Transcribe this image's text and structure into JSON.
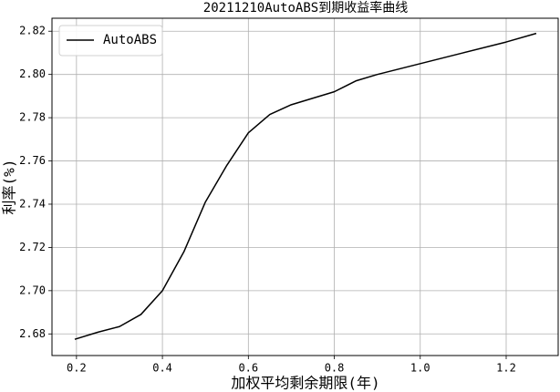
{
  "chart_data": {
    "type": "line",
    "title": "20211210AutoABS到期收益率曲线",
    "x_label": "加权平均剩余期限(年)",
    "y_label": "利率(%)",
    "x": [
      0.196,
      0.25,
      0.3,
      0.35,
      0.4,
      0.45,
      0.5,
      0.55,
      0.6,
      0.65,
      0.7,
      0.75,
      0.8,
      0.85,
      0.9,
      1.0,
      1.1,
      1.2,
      1.27
    ],
    "series": [
      {
        "name": "AutoABS",
        "color": "#000000",
        "values": [
          2.6775,
          2.6808,
          2.6834,
          2.689,
          2.7,
          2.718,
          2.741,
          2.758,
          2.773,
          2.7815,
          2.786,
          2.789,
          2.792,
          2.797,
          2.8,
          2.805,
          2.81,
          2.815,
          2.819
        ]
      }
    ],
    "xlim": [
      0.143,
      1.321
    ],
    "ylim": [
      2.67,
      2.826
    ],
    "xticks": [
      0.2,
      0.4,
      0.6,
      0.8,
      {
        "value": 1.0,
        "label": "1.0"
      },
      1.2
    ],
    "yticks": [
      2.68,
      {
        "value": 2.7,
        "label": "2.70"
      },
      2.72,
      2.74,
      2.76,
      2.78,
      {
        "value": 2.8,
        "label": "2.80"
      },
      2.82
    ],
    "grid": true,
    "legend": "upper left"
  }
}
